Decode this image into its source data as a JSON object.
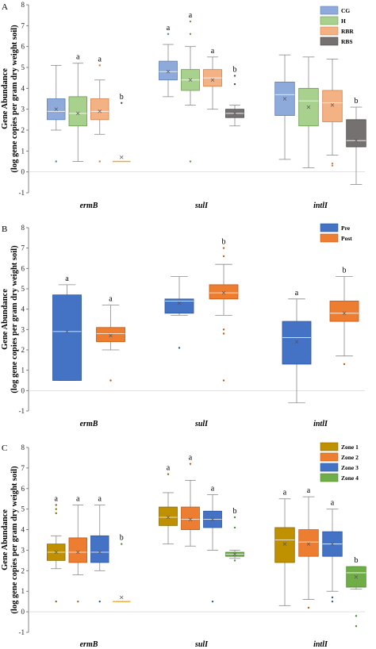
{
  "chart_data": [
    {
      "panel": "A",
      "type": "box",
      "ylabel": "Gene Abundance",
      "ylabel_sub": "(log gene copies per gram dry weight soil)",
      "ylim": [
        -1,
        8
      ],
      "yticks": [
        -1,
        0,
        1,
        2,
        3,
        4,
        5,
        6,
        7,
        8
      ],
      "grid": false,
      "legend_position": "top-right",
      "categories": [
        "ermB",
        "sulI",
        "intlI"
      ],
      "series": [
        {
          "name": "CG",
          "color": "#8eaadb",
          "stroke": "#5b7fb9",
          "boxes": [
            {
              "min": 2.0,
              "q1": 2.5,
              "median": 2.9,
              "q3": 3.5,
              "max": 5.1,
              "mean": 3.0,
              "outliers": [
                0.5
              ],
              "letter": ""
            },
            {
              "min": 3.6,
              "q1": 4.4,
              "median": 4.8,
              "q3": 5.3,
              "max": 6.1,
              "mean": 4.8,
              "outliers": [
                6.6
              ],
              "letter": "a"
            },
            {
              "min": 0.6,
              "q1": 2.7,
              "median": 3.7,
              "q3": 4.3,
              "max": 5.6,
              "mean": 3.5,
              "outliers": [],
              "letter": ""
            }
          ]
        },
        {
          "name": "H",
          "color": "#a9d18e",
          "stroke": "#6a9c4d",
          "boxes": [
            {
              "min": 0.5,
              "q1": 2.2,
              "median": 2.8,
              "q3": 3.6,
              "max": 5.2,
              "mean": 2.8,
              "outliers": [],
              "letter": "a"
            },
            {
              "min": 3.2,
              "q1": 3.9,
              "median": 4.4,
              "q3": 4.9,
              "max": 6.0,
              "mean": 4.4,
              "outliers": [
                0.5,
                6.6,
                7.2
              ],
              "letter": "a"
            },
            {
              "min": 0.2,
              "q1": 2.2,
              "median": 3.4,
              "q3": 4.0,
              "max": 5.5,
              "mean": 3.1,
              "outliers": [],
              "letter": ""
            }
          ]
        },
        {
          "name": "RBR",
          "color": "#f4b183",
          "stroke": "#d0814d",
          "boxes": [
            {
              "min": 1.8,
              "q1": 2.5,
              "median": 2.9,
              "q3": 3.5,
              "max": 4.4,
              "mean": 2.9,
              "outliers": [
                0.5,
                5.1
              ],
              "letter": "a"
            },
            {
              "min": 3.0,
              "q1": 4.1,
              "median": 4.5,
              "q3": 4.9,
              "max": 5.5,
              "mean": 4.4,
              "outliers": [],
              "letter": "a"
            },
            {
              "min": 0.8,
              "q1": 2.4,
              "median": 3.3,
              "q3": 3.9,
              "max": 5.4,
              "mean": 3.2,
              "outliers": [
                0.3,
                0.4
              ],
              "letter": ""
            }
          ]
        },
        {
          "name": "RBS",
          "color": "#767171",
          "stroke": "#4a4747",
          "boxes": [
            {
              "min": 0.5,
              "q1": 0.5,
              "median": 0.5,
              "q3": 0.5,
              "max": 0.5,
              "mean": 0.7,
              "outliers": [
                3.3
              ],
              "letter": "b",
              "line_color": "#f0a830"
            },
            {
              "min": 2.2,
              "q1": 2.6,
              "median": 2.8,
              "q3": 3.0,
              "max": 3.2,
              "mean": 2.8,
              "outliers": [
                4.2,
                4.6
              ],
              "letter": "b"
            },
            {
              "min": -0.6,
              "q1": 1.2,
              "median": 1.5,
              "q3": 2.5,
              "max": 3.1,
              "mean": 1.5,
              "outliers": [],
              "letter": "b"
            }
          ]
        }
      ],
      "group_letters": [
        "a",
        "",
        "a"
      ]
    },
    {
      "panel": "B",
      "type": "box",
      "ylabel": "Gene Abundance",
      "ylabel_sub": "(log gene copies per gram dry weight soil)",
      "ylim": [
        -1,
        8
      ],
      "yticks": [
        -1,
        0,
        1,
        2,
        3,
        4,
        5,
        6,
        7,
        8
      ],
      "grid": false,
      "legend_position": "top-right",
      "categories": [
        "ermB",
        "sulI",
        "intlI"
      ],
      "series": [
        {
          "name": "Pre",
          "color": "#4472c4",
          "stroke": "#2f5597",
          "boxes": [
            {
              "min": 0.5,
              "q1": 0.5,
              "median": 2.9,
              "q3": 4.7,
              "max": 5.2,
              "mean": 2.9,
              "outliers": [],
              "letter": "a"
            },
            {
              "min": 3.7,
              "q1": 3.8,
              "median": 4.4,
              "q3": 4.5,
              "max": 5.6,
              "mean": 4.3,
              "outliers": [
                2.1
              ],
              "letter": ""
            },
            {
              "min": -0.6,
              "q1": 1.3,
              "median": 2.6,
              "q3": 3.4,
              "max": 4.5,
              "mean": 2.4,
              "outliers": [],
              "letter": "a"
            }
          ]
        },
        {
          "name": "Post",
          "color": "#ed7d31",
          "stroke": "#c55a11",
          "boxes": [
            {
              "min": 2.0,
              "q1": 2.4,
              "median": 2.8,
              "q3": 3.1,
              "max": 4.2,
              "mean": 2.7,
              "outliers": [
                0.5
              ],
              "letter": "a"
            },
            {
              "min": 3.7,
              "q1": 4.5,
              "median": 4.8,
              "q3": 5.2,
              "max": 6.2,
              "mean": 4.8,
              "outliers": [
                0.5,
                2.8,
                3.0,
                6.6,
                7.0
              ],
              "letter": "b"
            },
            {
              "min": 1.7,
              "q1": 3.4,
              "median": 3.8,
              "q3": 4.4,
              "max": 5.6,
              "mean": 3.8,
              "outliers": [
                1.3
              ],
              "letter": "b"
            }
          ]
        }
      ],
      "group_letters": [
        "",
        "a",
        ""
      ]
    },
    {
      "panel": "C",
      "type": "box",
      "ylabel": "Gene Abundance",
      "ylabel_sub": "(log gene copies per gram dry weight soil)",
      "ylim": [
        -1,
        8
      ],
      "yticks": [
        -1,
        0,
        1,
        2,
        3,
        4,
        5,
        6,
        7,
        8
      ],
      "grid": false,
      "legend_position": "top-right",
      "categories": [
        "ermB",
        "sulI",
        "intlI"
      ],
      "series": [
        {
          "name": "Zone 1",
          "color": "#bf9000",
          "stroke": "#8c6a00",
          "boxes": [
            {
              "min": 2.1,
              "q1": 2.5,
              "median": 2.9,
              "q3": 3.3,
              "max": 3.7,
              "mean": 2.9,
              "outliers": [
                0.5,
                4.8,
                5.0,
                5.2
              ],
              "letter": "a"
            },
            {
              "min": 3.3,
              "q1": 4.2,
              "median": 4.6,
              "q3": 5.1,
              "max": 5.8,
              "mean": 4.6,
              "outliers": [
                6.7
              ],
              "letter": "a"
            },
            {
              "min": 0.3,
              "q1": 2.4,
              "median": 3.5,
              "q3": 4.1,
              "max": 5.5,
              "mean": 3.3,
              "outliers": [],
              "letter": "a"
            }
          ]
        },
        {
          "name": "Zone 2",
          "color": "#ed7d31",
          "stroke": "#c55a11",
          "boxes": [
            {
              "min": 1.8,
              "q1": 2.4,
              "median": 2.9,
              "q3": 3.6,
              "max": 5.2,
              "mean": 2.9,
              "outliers": [
                0.5
              ],
              "letter": "a"
            },
            {
              "min": 3.2,
              "q1": 4.0,
              "median": 4.5,
              "q3": 5.1,
              "max": 6.4,
              "mean": 4.5,
              "outliers": [
                7.2
              ],
              "letter": "a"
            },
            {
              "min": 0.6,
              "q1": 2.7,
              "median": 3.4,
              "q3": 4.0,
              "max": 5.6,
              "mean": 3.3,
              "outliers": [
                0.2
              ],
              "letter": "a"
            }
          ]
        },
        {
          "name": "Zone 3",
          "color": "#4472c4",
          "stroke": "#2f5597",
          "boxes": [
            {
              "min": 2.0,
              "q1": 2.4,
              "median": 2.9,
              "q3": 3.7,
              "max": 5.2,
              "mean": 2.9,
              "outliers": [
                0.5
              ],
              "letter": "a"
            },
            {
              "min": 3.0,
              "q1": 4.1,
              "median": 4.5,
              "q3": 4.9,
              "max": 5.7,
              "mean": 4.5,
              "outliers": [
                0.5
              ],
              "letter": "a"
            },
            {
              "min": 1.0,
              "q1": 2.7,
              "median": 3.3,
              "q3": 3.9,
              "max": 5.0,
              "mean": 3.3,
              "outliers": [
                0.5,
                0.7
              ],
              "letter": "a"
            }
          ]
        },
        {
          "name": "Zone 4",
          "color": "#70ad47",
          "stroke": "#4e8a2f",
          "boxes": [
            {
              "min": 0.5,
              "q1": 0.5,
              "median": 0.5,
              "q3": 0.5,
              "max": 0.5,
              "mean": 0.7,
              "outliers": [
                3.3
              ],
              "letter": "b",
              "line_color": "#f0a830"
            },
            {
              "min": 2.6,
              "q1": 2.7,
              "median": 2.8,
              "q3": 2.9,
              "max": 3.0,
              "mean": 2.8,
              "outliers": [
                2.5,
                4.1,
                4.6
              ],
              "letter": "b"
            },
            {
              "min": 1.1,
              "q1": 1.2,
              "median": 1.9,
              "q3": 2.2,
              "max": 2.2,
              "mean": 1.7,
              "outliers": [
                -0.2,
                -0.7
              ],
              "letter": "b"
            }
          ]
        }
      ],
      "group_letters": [
        "",
        "",
        ""
      ]
    }
  ]
}
